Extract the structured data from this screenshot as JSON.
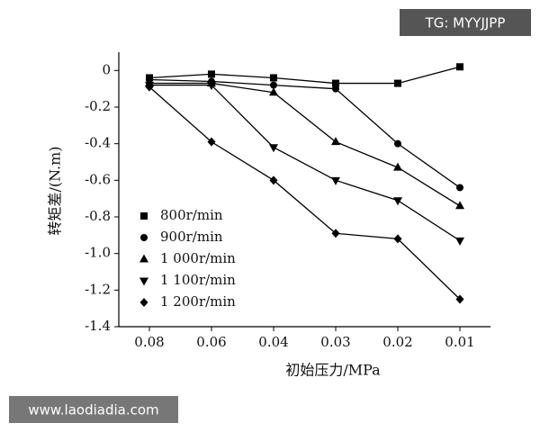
{
  "chart_data": {
    "type": "line",
    "x_label": "初始压力/MPa",
    "y_label": "转矩差/(N.m)",
    "categories": [
      "0.08",
      "0.06",
      "0.04",
      "0.03",
      "0.02",
      "0.01"
    ],
    "series": [
      {
        "name": "800r/min",
        "color": "#000000",
        "marker": "square",
        "values": [
          -0.04,
          -0.02,
          -0.04,
          -0.07,
          -0.07,
          0.02
        ]
      },
      {
        "name": "900r/min",
        "color": "#000000",
        "marker": "circle",
        "values": [
          -0.05,
          -0.06,
          -0.08,
          -0.1,
          -0.4,
          -0.64
        ]
      },
      {
        "name": "1 000r/min",
        "color": "#000000",
        "marker": "triangle-up",
        "values": [
          -0.07,
          -0.07,
          -0.12,
          -0.39,
          -0.53,
          -0.74
        ]
      },
      {
        "name": "1 100r/min",
        "color": "#000000",
        "marker": "triangle-down",
        "values": [
          -0.08,
          -0.08,
          -0.42,
          -0.6,
          -0.71,
          -0.93
        ]
      },
      {
        "name": "1 200r/min",
        "color": "#000000",
        "marker": "diamond",
        "values": [
          -0.09,
          -0.39,
          -0.6,
          -0.89,
          -0.92,
          -1.25
        ]
      }
    ],
    "ylim": [
      -1.4,
      0.1
    ],
    "yticks": [
      0,
      -0.2,
      -0.4,
      -0.6,
      -0.8,
      {
        "value": -1,
        "label": "-1.0"
      },
      -1.2,
      -1.4
    ],
    "legend": "lower-left"
  },
  "watermarks": [
    "TG: MYYJJPP",
    "www.laodiadia.com"
  ]
}
